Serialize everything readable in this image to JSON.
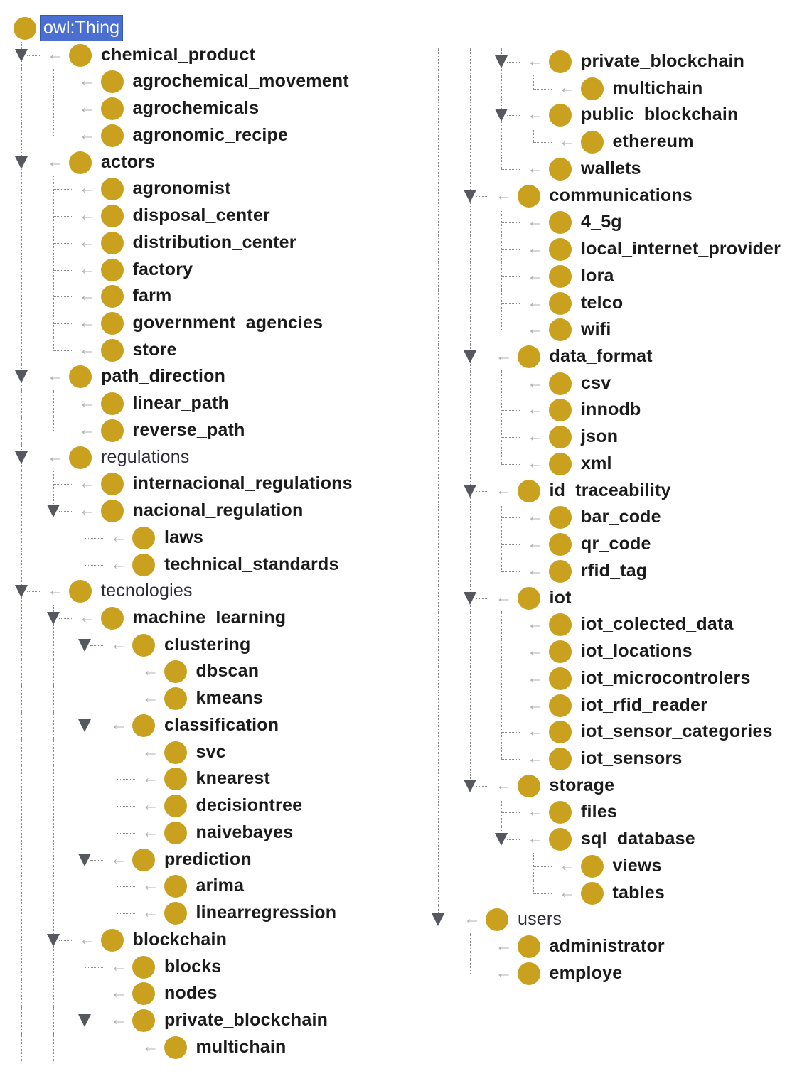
{
  "root": {
    "label": "owl:Thing",
    "selected": true
  },
  "colors": {
    "class_icon": "#c9a11f",
    "selection": "#4a6fd1",
    "toggle": "#55585e"
  },
  "columns": [
    {
      "nodes": [
        {
          "label": "chemical_product",
          "level": 1,
          "expanded": true
        },
        {
          "label": "agrochemical_movement",
          "level": 2
        },
        {
          "label": "agrochemicals",
          "level": 2
        },
        {
          "label": "agronomic_recipe",
          "level": 2
        },
        {
          "label": "actors",
          "level": 1,
          "expanded": true
        },
        {
          "label": "agronomist",
          "level": 2
        },
        {
          "label": "disposal_center",
          "level": 2
        },
        {
          "label": "distribution_center",
          "level": 2
        },
        {
          "label": "factory",
          "level": 2
        },
        {
          "label": "farm",
          "level": 2
        },
        {
          "label": "government_agencies",
          "level": 2
        },
        {
          "label": "store",
          "level": 2
        },
        {
          "label": "path_direction",
          "level": 1,
          "expanded": true
        },
        {
          "label": "linear_path",
          "level": 2
        },
        {
          "label": "reverse_path",
          "level": 2
        },
        {
          "label": "regulations",
          "level": 1,
          "expanded": true,
          "plain": true
        },
        {
          "label": "internacional_regulations",
          "level": 2
        },
        {
          "label": "nacional_regulation",
          "level": 2,
          "expanded": true
        },
        {
          "label": "laws",
          "level": 3
        },
        {
          "label": "technical_standards",
          "level": 3
        },
        {
          "label": "tecnologies",
          "level": 1,
          "expanded": true,
          "plain": true
        },
        {
          "label": "machine_learning",
          "level": 2,
          "expanded": true
        },
        {
          "label": "clustering",
          "level": 3,
          "expanded": true
        },
        {
          "label": "dbscan",
          "level": 4
        },
        {
          "label": "kmeans",
          "level": 4
        },
        {
          "label": "classification",
          "level": 3,
          "expanded": true
        },
        {
          "label": "svc",
          "level": 4
        },
        {
          "label": "knearest",
          "level": 4
        },
        {
          "label": "decisiontree",
          "level": 4
        },
        {
          "label": "naivebayes",
          "level": 4
        },
        {
          "label": "prediction",
          "level": 3,
          "expanded": true
        },
        {
          "label": "arima",
          "level": 4
        },
        {
          "label": "linearregression",
          "level": 4
        },
        {
          "label": "blockchain",
          "level": 2,
          "expanded": true
        },
        {
          "label": "blocks",
          "level": 3
        },
        {
          "label": "nodes",
          "level": 3
        },
        {
          "label": "private_blockchain",
          "level": 3,
          "expanded": true
        },
        {
          "label": "multichain",
          "level": 4
        }
      ]
    },
    {
      "nodes": [
        {
          "label": "private_blockchain",
          "level": 3,
          "expanded": true
        },
        {
          "label": "multichain",
          "level": 4
        },
        {
          "label": "public_blockchain",
          "level": 3,
          "expanded": true
        },
        {
          "label": "ethereum",
          "level": 4
        },
        {
          "label": "wallets",
          "level": 3
        },
        {
          "label": "communications",
          "level": 2,
          "expanded": true
        },
        {
          "label": "4_5g",
          "level": 3
        },
        {
          "label": "local_internet_provider",
          "level": 3
        },
        {
          "label": "lora",
          "level": 3
        },
        {
          "label": "telco",
          "level": 3
        },
        {
          "label": "wifi",
          "level": 3
        },
        {
          "label": "data_format",
          "level": 2,
          "expanded": true
        },
        {
          "label": "csv",
          "level": 3
        },
        {
          "label": "innodb",
          "level": 3
        },
        {
          "label": "json",
          "level": 3
        },
        {
          "label": "xml",
          "level": 3
        },
        {
          "label": "id_traceability",
          "level": 2,
          "expanded": true
        },
        {
          "label": "bar_code",
          "level": 3
        },
        {
          "label": "qr_code",
          "level": 3
        },
        {
          "label": "rfid_tag",
          "level": 3
        },
        {
          "label": "iot",
          "level": 2,
          "expanded": true
        },
        {
          "label": "iot_colected_data",
          "level": 3
        },
        {
          "label": "iot_locations",
          "level": 3
        },
        {
          "label": "iot_microcontrolers",
          "level": 3
        },
        {
          "label": "iot_rfid_reader",
          "level": 3
        },
        {
          "label": "iot_sensor_categories",
          "level": 3
        },
        {
          "label": "iot_sensors",
          "level": 3
        },
        {
          "label": "storage",
          "level": 2,
          "expanded": true
        },
        {
          "label": "files",
          "level": 3
        },
        {
          "label": "sql_database",
          "level": 3,
          "expanded": true
        },
        {
          "label": "views",
          "level": 4
        },
        {
          "label": "tables",
          "level": 4
        },
        {
          "label": "users",
          "level": 1,
          "expanded": true,
          "plain": true
        },
        {
          "label": "administrator",
          "level": 2
        },
        {
          "label": "employe",
          "level": 2
        }
      ]
    }
  ]
}
